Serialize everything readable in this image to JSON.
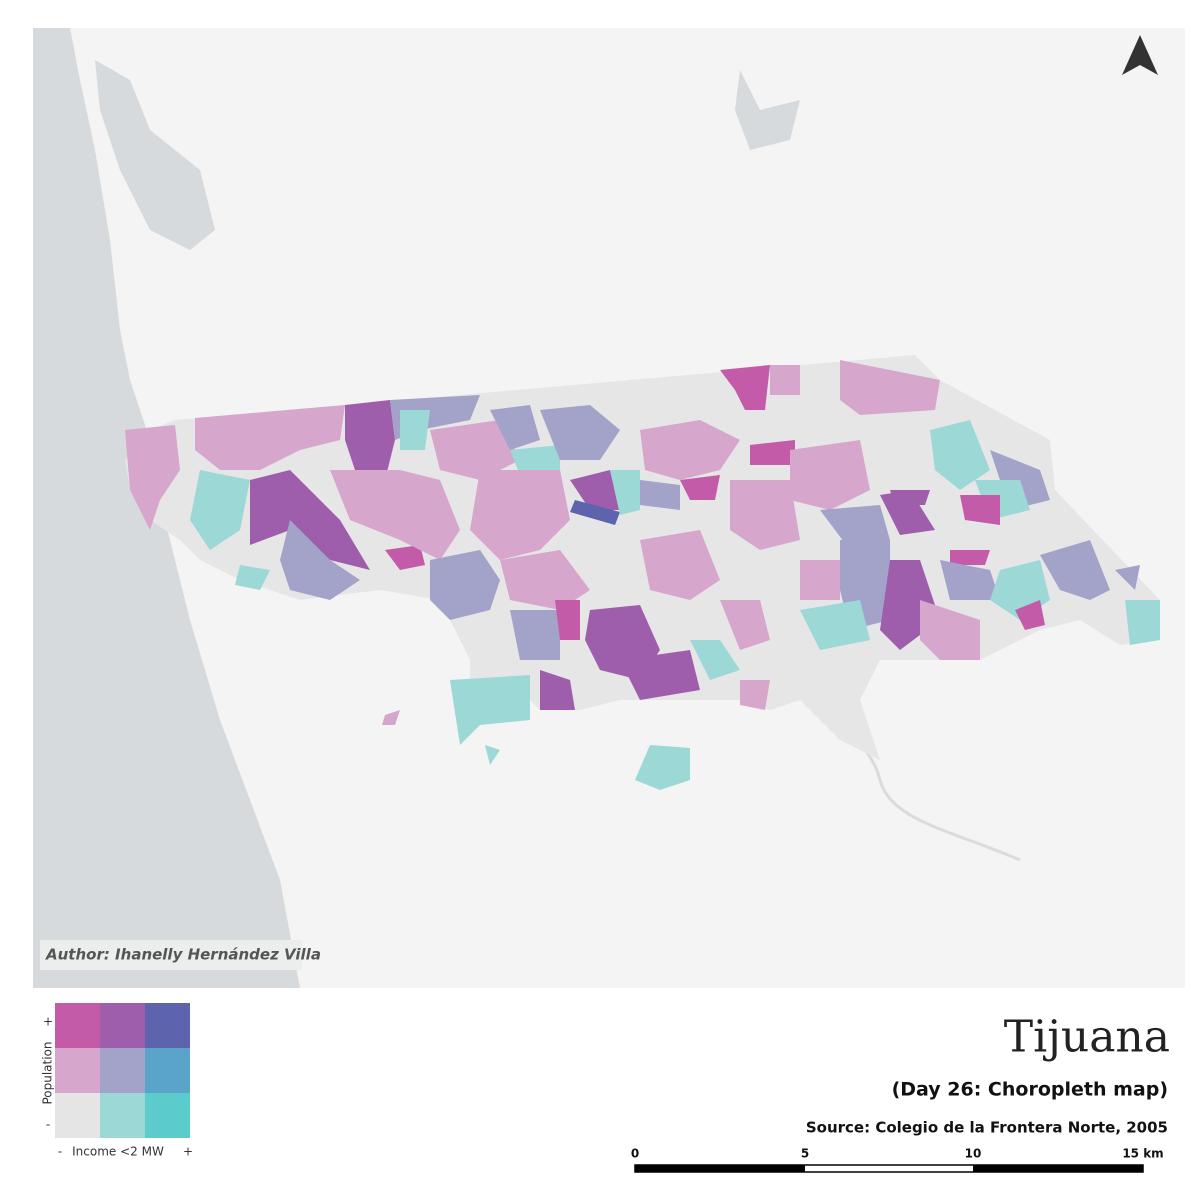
{
  "map": {
    "author": "Author: Ihanelly Hernández Villa",
    "title": "Tijuana",
    "subtitle": "(Day 26: Choropleth map)",
    "source": "Source: Colegio de la Frontera Norte, 2005",
    "legend": {
      "y_label": "Population",
      "y_plus": "+",
      "y_minus": "-",
      "x_label": "Income <2 MW",
      "x_minus": "-",
      "x_plus": "+",
      "colors": [
        [
          "#c45ba9",
          "#9f5eab",
          "#5d63ac"
        ],
        [
          "#d7a6cc",
          "#a3a2c9",
          "#5aa3c9"
        ],
        [
          "#e5e5e5",
          "#9bd8d6",
          "#5bcccb"
        ]
      ]
    },
    "scale_bar": {
      "labels": [
        "0",
        "5",
        "10",
        "15 km"
      ]
    }
  }
}
